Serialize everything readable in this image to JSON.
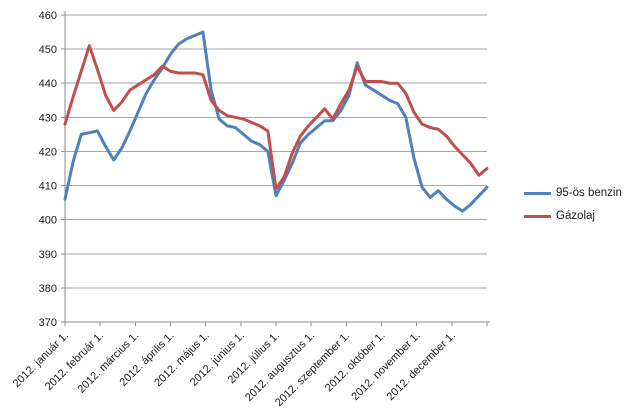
{
  "chart": {
    "background": "#FFFFFF",
    "text_color": "#1a1a1a",
    "gridline_color": "#A6A6A6",
    "axis_color": "#8C8C8C"
  },
  "chart_data": {
    "type": "line",
    "title": "",
    "xlabel": "",
    "ylabel": "",
    "x_unit": "2012, weekly price points (index 0-52, Jan 1 - Dec 31)",
    "x_tick_labels": [
      "2012. január 1.",
      "2012. február 1.",
      "2012. március 1.",
      "2012. április 1.",
      "2012. május 1.",
      "2012. június 1.",
      "2012. július 1.",
      "2012. augusztus 1.",
      "2012. szeptember 1.",
      "2012. október 1.",
      "2012. november 1.",
      "2012. december 1."
    ],
    "ylim": [
      370,
      460
    ],
    "y_ticks": [
      370,
      380,
      390,
      400,
      410,
      420,
      430,
      440,
      450,
      460
    ],
    "grid": true,
    "legend_position": "right",
    "series": [
      {
        "name": "95-ös benzin",
        "color": "#4F81BD",
        "values": [
          406,
          417,
          425,
          425.5,
          426,
          421.5,
          417.5,
          421,
          426,
          431.5,
          437,
          441,
          444.5,
          448.5,
          451.5,
          453,
          454,
          455,
          438,
          429.5,
          427.5,
          427,
          425,
          423,
          422,
          420,
          407,
          411.5,
          416.5,
          422.5,
          425,
          427,
          429,
          429,
          432,
          436.5,
          446,
          439.5,
          438,
          436.5,
          435,
          434,
          430,
          418,
          409.5,
          406.5,
          408.5,
          406,
          404,
          402.5,
          404.5,
          407,
          409.5
        ]
      },
      {
        "name": "Gázolaj",
        "color": "#C0504D",
        "values": [
          428,
          436,
          443.5,
          451,
          444,
          436.5,
          432,
          434.5,
          438,
          439.5,
          441,
          442.5,
          445,
          443.5,
          443,
          443,
          443,
          442.5,
          435,
          432,
          430.5,
          430,
          429.5,
          428.5,
          427.5,
          426,
          409,
          412.5,
          419.5,
          424.5,
          427.5,
          430,
          432.5,
          429.5,
          434,
          438,
          445,
          440.5,
          440.5,
          440.5,
          440,
          440,
          437,
          431.5,
          428,
          427,
          426.5,
          424.5,
          421.5,
          419,
          416.5,
          413,
          415
        ]
      }
    ]
  }
}
